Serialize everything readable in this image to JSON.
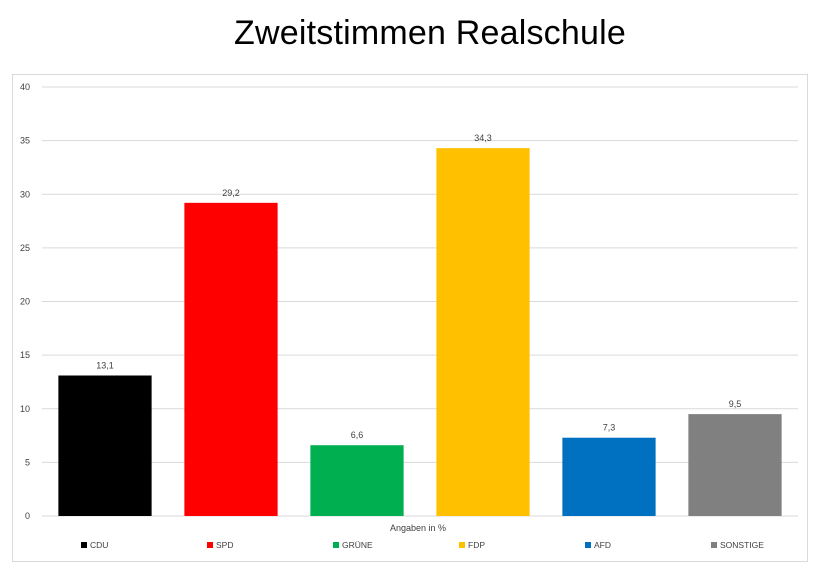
{
  "chart_data": {
    "type": "bar",
    "title": "Zweitstimmen Realschule",
    "xlabel": "Angaben in %",
    "ylabel": "",
    "ylim": [
      0,
      40
    ],
    "yticks": [
      0,
      5,
      10,
      15,
      20,
      25,
      30,
      35,
      40
    ],
    "grid": true,
    "legend_position": "bottom",
    "categories": [
      "CDU",
      "SPD",
      "GRÜNE",
      "FDP",
      "AFD",
      "SONSTIGE"
    ],
    "values": [
      13.1,
      29.2,
      6.6,
      34.3,
      7.3,
      9.5
    ],
    "value_labels": [
      "13,1",
      "29,2",
      "6,6",
      "34,3",
      "7,3",
      "9,5"
    ],
    "colors": [
      "#000000",
      "#ff0000",
      "#00b050",
      "#ffc000",
      "#0070c0",
      "#808080"
    ]
  }
}
